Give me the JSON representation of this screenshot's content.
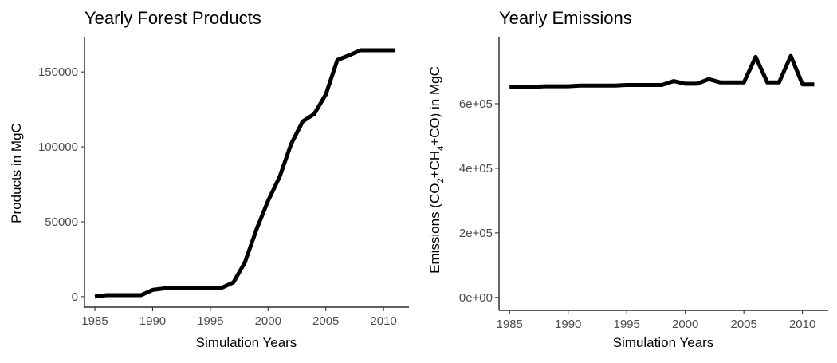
{
  "chart_data": [
    {
      "type": "line",
      "title": "Yearly Forest Products",
      "xlabel": "Simulation Years",
      "ylabel": "Products in MgC",
      "xlim": [
        1984.1,
        2012.2
      ],
      "ylim": [
        -7000,
        173000
      ],
      "xticks": [
        1985,
        1990,
        1995,
        2000,
        2005,
        2010
      ],
      "yticks": [
        0,
        50000,
        100000,
        150000
      ],
      "ytick_labels": [
        "0",
        "50000",
        "100000",
        "150000"
      ],
      "grid": false,
      "legend": "none",
      "line_color": "#000000",
      "x": [
        1985,
        1986,
        1987,
        1988,
        1989,
        1990,
        1991,
        1992,
        1993,
        1994,
        1995,
        1996,
        1997,
        1998,
        1999,
        2000,
        2001,
        2002,
        2003,
        2004,
        2005,
        2006,
        2007,
        2008,
        2009,
        2010,
        2011
      ],
      "y": [
        0,
        1000,
        1000,
        1000,
        1000,
        4500,
        5500,
        5500,
        5500,
        5500,
        6000,
        6000,
        9500,
        23000,
        45000,
        64000,
        80000,
        102000,
        117000,
        122000,
        135000,
        158000,
        161000,
        164500,
        164500,
        164500,
        164500
      ]
    },
    {
      "type": "line",
      "title": "Yearly Emissions",
      "xlabel": "Simulation Years",
      "ylabel_parts": [
        "Emissions (CO",
        "2",
        "+CH",
        "4",
        "+CO) in MgC"
      ],
      "xlim": [
        1984.1,
        2012.2
      ],
      "ylim": [
        -40000,
        805000
      ],
      "xticks": [
        1985,
        1990,
        1995,
        2000,
        2005,
        2010
      ],
      "yticks": [
        0,
        200000,
        400000,
        600000
      ],
      "ytick_labels": [
        "0e+00",
        "2e+05",
        "4e+05",
        "6e+05"
      ],
      "grid": false,
      "legend": "none",
      "line_color": "#000000",
      "x": [
        1985,
        1986,
        1987,
        1988,
        1989,
        1990,
        1991,
        1992,
        1993,
        1994,
        1995,
        1996,
        1997,
        1998,
        1999,
        2000,
        2001,
        2002,
        2003,
        2004,
        2005,
        2006,
        2007,
        2008,
        2009,
        2010,
        2011
      ],
      "y": [
        652000,
        652000,
        652000,
        654000,
        654000,
        654000,
        656000,
        656000,
        656000,
        656000,
        658000,
        658000,
        658000,
        658000,
        670000,
        662000,
        662000,
        676000,
        666000,
        666000,
        666000,
        745000,
        666000,
        666000,
        748000,
        660000,
        660000
      ]
    }
  ]
}
